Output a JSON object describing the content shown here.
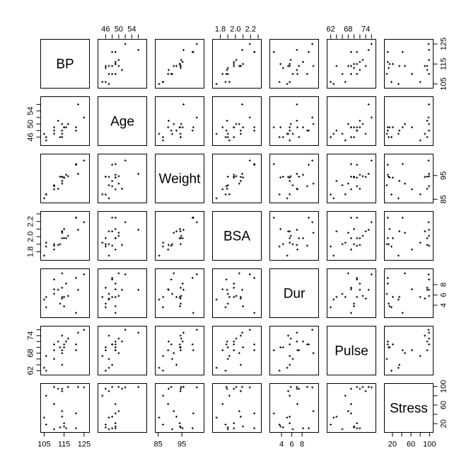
{
  "chart_data": {
    "type": "scatter-matrix",
    "variables": [
      {
        "name": "BP",
        "range": [
          104.5,
          126.1
        ],
        "ticks": [
          105,
          115,
          125
        ]
      },
      {
        "name": "Age",
        "range": [
          44.4,
          57.6
        ],
        "ticks": [
          46,
          50,
          54
        ],
        "extra_ticks": [
          48,
          52,
          56
        ],
        "label_ticks": [
          46,
          50,
          54
        ]
      },
      {
        "name": "Weight",
        "range": [
          84.8,
          103.0
        ],
        "ticks": [
          85,
          95
        ]
      },
      {
        "name": "BSA",
        "range": [
          1.73,
          2.3
        ],
        "ticks": [
          1.8,
          2.0,
          2.2
        ],
        "extra_ticks": [
          1.9,
          2.1,
          2.3
        ],
        "label_ticks": [
          1.8,
          2.0,
          2.2
        ]
      },
      {
        "name": "Dur",
        "range": [
          2.2,
          10.6
        ],
        "ticks": [
          4,
          6,
          8
        ]
      },
      {
        "name": "Pulse",
        "range": [
          61.6,
          76.4
        ],
        "ticks": [
          62,
          68,
          74
        ],
        "extra_ticks": [
          64,
          66,
          70,
          72,
          76
        ],
        "label_ticks": [
          62,
          68,
          74
        ]
      },
      {
        "name": "Stress",
        "range": [
          8,
          101
        ],
        "ticks": [
          20,
          60,
          100
        ],
        "extra_ticks": [
          40,
          80
        ],
        "label_ticks": [
          20,
          60,
          100
        ]
      }
    ],
    "tick_text": {
      "BP": [
        "105",
        "115",
        "125"
      ],
      "Age": [
        "46",
        "50",
        "54"
      ],
      "Weight": [
        "85",
        "95"
      ],
      "BSA": [
        "1.8",
        "2.0",
        "2.2"
      ],
      "Dur": [
        "4",
        "6",
        "8"
      ],
      "Pulse": [
        "62",
        "68",
        "74"
      ],
      "Stress": [
        "20",
        "60",
        "100"
      ]
    },
    "observations": {
      "BP": [
        105,
        115,
        116,
        117,
        112,
        121,
        121,
        110,
        110,
        114,
        114,
        115,
        114,
        106,
        125,
        114,
        106,
        113,
        110,
        122
      ],
      "Age": [
        47,
        49,
        49,
        50,
        51,
        48,
        49,
        47,
        49,
        48,
        47,
        49,
        50,
        45,
        52,
        46,
        46,
        46,
        48,
        56
      ],
      "Weight": [
        85.4,
        94.2,
        95.3,
        94.7,
        89.4,
        99.5,
        99.8,
        90.9,
        89.2,
        92.7,
        94.4,
        94.1,
        91.6,
        87.1,
        101.3,
        94.5,
        87.0,
        94.5,
        90.5,
        95.7
      ],
      "BSA": [
        1.75,
        2.1,
        1.98,
        2.01,
        1.89,
        2.25,
        2.25,
        1.9,
        1.83,
        2.07,
        2.07,
        1.98,
        2.05,
        1.92,
        2.19,
        1.98,
        1.87,
        1.9,
        1.88,
        2.09
      ],
      "Dur": [
        5.1,
        3.8,
        8.2,
        5.8,
        7.0,
        9.3,
        2.5,
        6.2,
        7.1,
        5.6,
        5.3,
        5.6,
        10.2,
        5.6,
        10.0,
        7.4,
        3.6,
        4.3,
        9.0,
        7.0
      ],
      "Pulse": [
        63,
        70,
        72,
        73,
        72,
        71,
        69,
        66,
        69,
        64,
        74,
        71,
        68,
        67,
        76,
        69,
        62,
        70,
        71,
        75
      ],
      "Stress": [
        33,
        14,
        10,
        99,
        95,
        10,
        42,
        8,
        62,
        35,
        90,
        21,
        47,
        80,
        98,
        95,
        18,
        12,
        99,
        99
      ]
    },
    "axis_sides": {
      "top": [
        "Age",
        "BSA",
        "Pulse"
      ],
      "right": [
        "BP",
        "Weight",
        "Dur",
        "Stress"
      ],
      "left": [
        "Age",
        "BSA",
        "Pulse"
      ],
      "bottom": [
        "BP",
        "Weight",
        "Dur",
        "Stress"
      ]
    }
  }
}
